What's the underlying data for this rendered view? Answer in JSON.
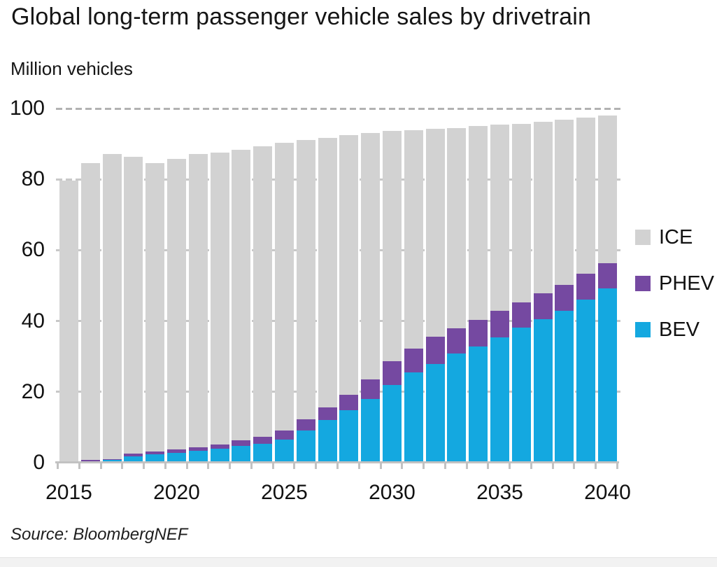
{
  "title": "Global long-term passenger vehicle sales by drivetrain",
  "y_axis_title": "Million vehicles",
  "source": "Source: BloombergNEF",
  "legend": {
    "position": "right",
    "items": [
      {
        "label": "ICE",
        "color": "#d2d2d2"
      },
      {
        "label": "PHEV",
        "color": "#7549a1"
      },
      {
        "label": "BEV",
        "color": "#14a8e0"
      }
    ]
  },
  "chart_data": {
    "type": "bar",
    "stacked": true,
    "title": "Global long-term passenger vehicle sales by drivetrain",
    "xlabel": "",
    "ylabel": "Million vehicles",
    "ylim": [
      0,
      100
    ],
    "y_ticks": [
      0,
      20,
      40,
      60,
      80,
      100
    ],
    "x": [
      2015,
      2016,
      2017,
      2018,
      2019,
      2020,
      2021,
      2022,
      2023,
      2024,
      2025,
      2026,
      2027,
      2028,
      2029,
      2030,
      2031,
      2032,
      2033,
      2034,
      2035,
      2036,
      2037,
      2038,
      2039,
      2040
    ],
    "x_tick_labels": [
      "2015",
      "2020",
      "2025",
      "2030",
      "2035",
      "2040"
    ],
    "grid": "dashed horizontal",
    "series": [
      {
        "name": "BEV",
        "color": "#14a8e0",
        "values": [
          0.1,
          0.2,
          0.7,
          1.8,
          2.3,
          2.8,
          3.3,
          4.0,
          4.8,
          5.3,
          6.6,
          9.0,
          12.0,
          14.8,
          18.0,
          22.0,
          25.4,
          27.9,
          30.8,
          32.9,
          35.4,
          38.2,
          40.6,
          42.8,
          46.0,
          49.3
        ]
      },
      {
        "name": "PHEV",
        "color": "#7549a1",
        "values": [
          0.1,
          0.5,
          0.3,
          0.7,
          0.8,
          1.0,
          1.1,
          1.2,
          1.5,
          2.0,
          2.5,
          3.2,
          3.6,
          4.4,
          5.6,
          6.6,
          6.9,
          7.6,
          7.2,
          7.4,
          7.4,
          7.1,
          7.2,
          7.4,
          7.4,
          7.1
        ]
      },
      {
        "name": "ICE",
        "color": "#d2d2d2",
        "values": [
          79.5,
          83.9,
          86.2,
          83.9,
          81.4,
          82.0,
          82.8,
          82.4,
          82.1,
          82.0,
          81.2,
          78.9,
          76.2,
          73.2,
          69.5,
          65.1,
          61.6,
          58.8,
          56.5,
          54.7,
          52.7,
          50.4,
          48.4,
          46.6,
          44.1,
          41.7
        ]
      }
    ],
    "totals": [
      79.7,
      84.6,
      87.2,
      86.4,
      84.5,
      85.8,
      87.2,
      87.6,
      88.4,
      89.3,
      90.3,
      91.1,
      91.8,
      92.4,
      93.1,
      93.7,
      93.9,
      94.3,
      94.5,
      95.0,
      95.5,
      95.7,
      96.2,
      96.8,
      97.5,
      98.1
    ]
  }
}
